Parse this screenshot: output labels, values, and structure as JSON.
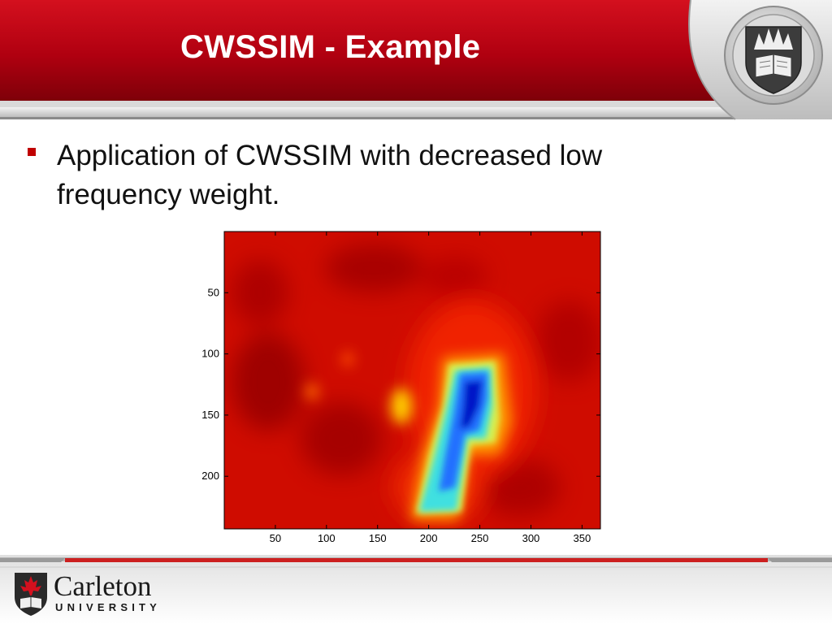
{
  "slide": {
    "title": "CWSSIM - Example",
    "bullet_text": "Application of CWSSIM with decreased low frequency weight."
  },
  "footer": {
    "logo_name": "Carleton",
    "logo_sub": "UNIVERSITY"
  },
  "colors": {
    "header_red": "#b30012",
    "bullet_red": "#c00000",
    "footer_red": "#cc1f1f"
  },
  "icons": [
    "university-crest-icon",
    "maple-leaf-shield-icon"
  ],
  "chart_data": {
    "type": "heatmap",
    "colormap": "jet",
    "x_ticks": [
      50,
      100,
      150,
      200,
      250,
      300,
      350
    ],
    "y_ticks": [
      50,
      100,
      150,
      200
    ],
    "xlim": [
      0,
      368
    ],
    "ylim": [
      0,
      243
    ],
    "y_reversed": true
  }
}
